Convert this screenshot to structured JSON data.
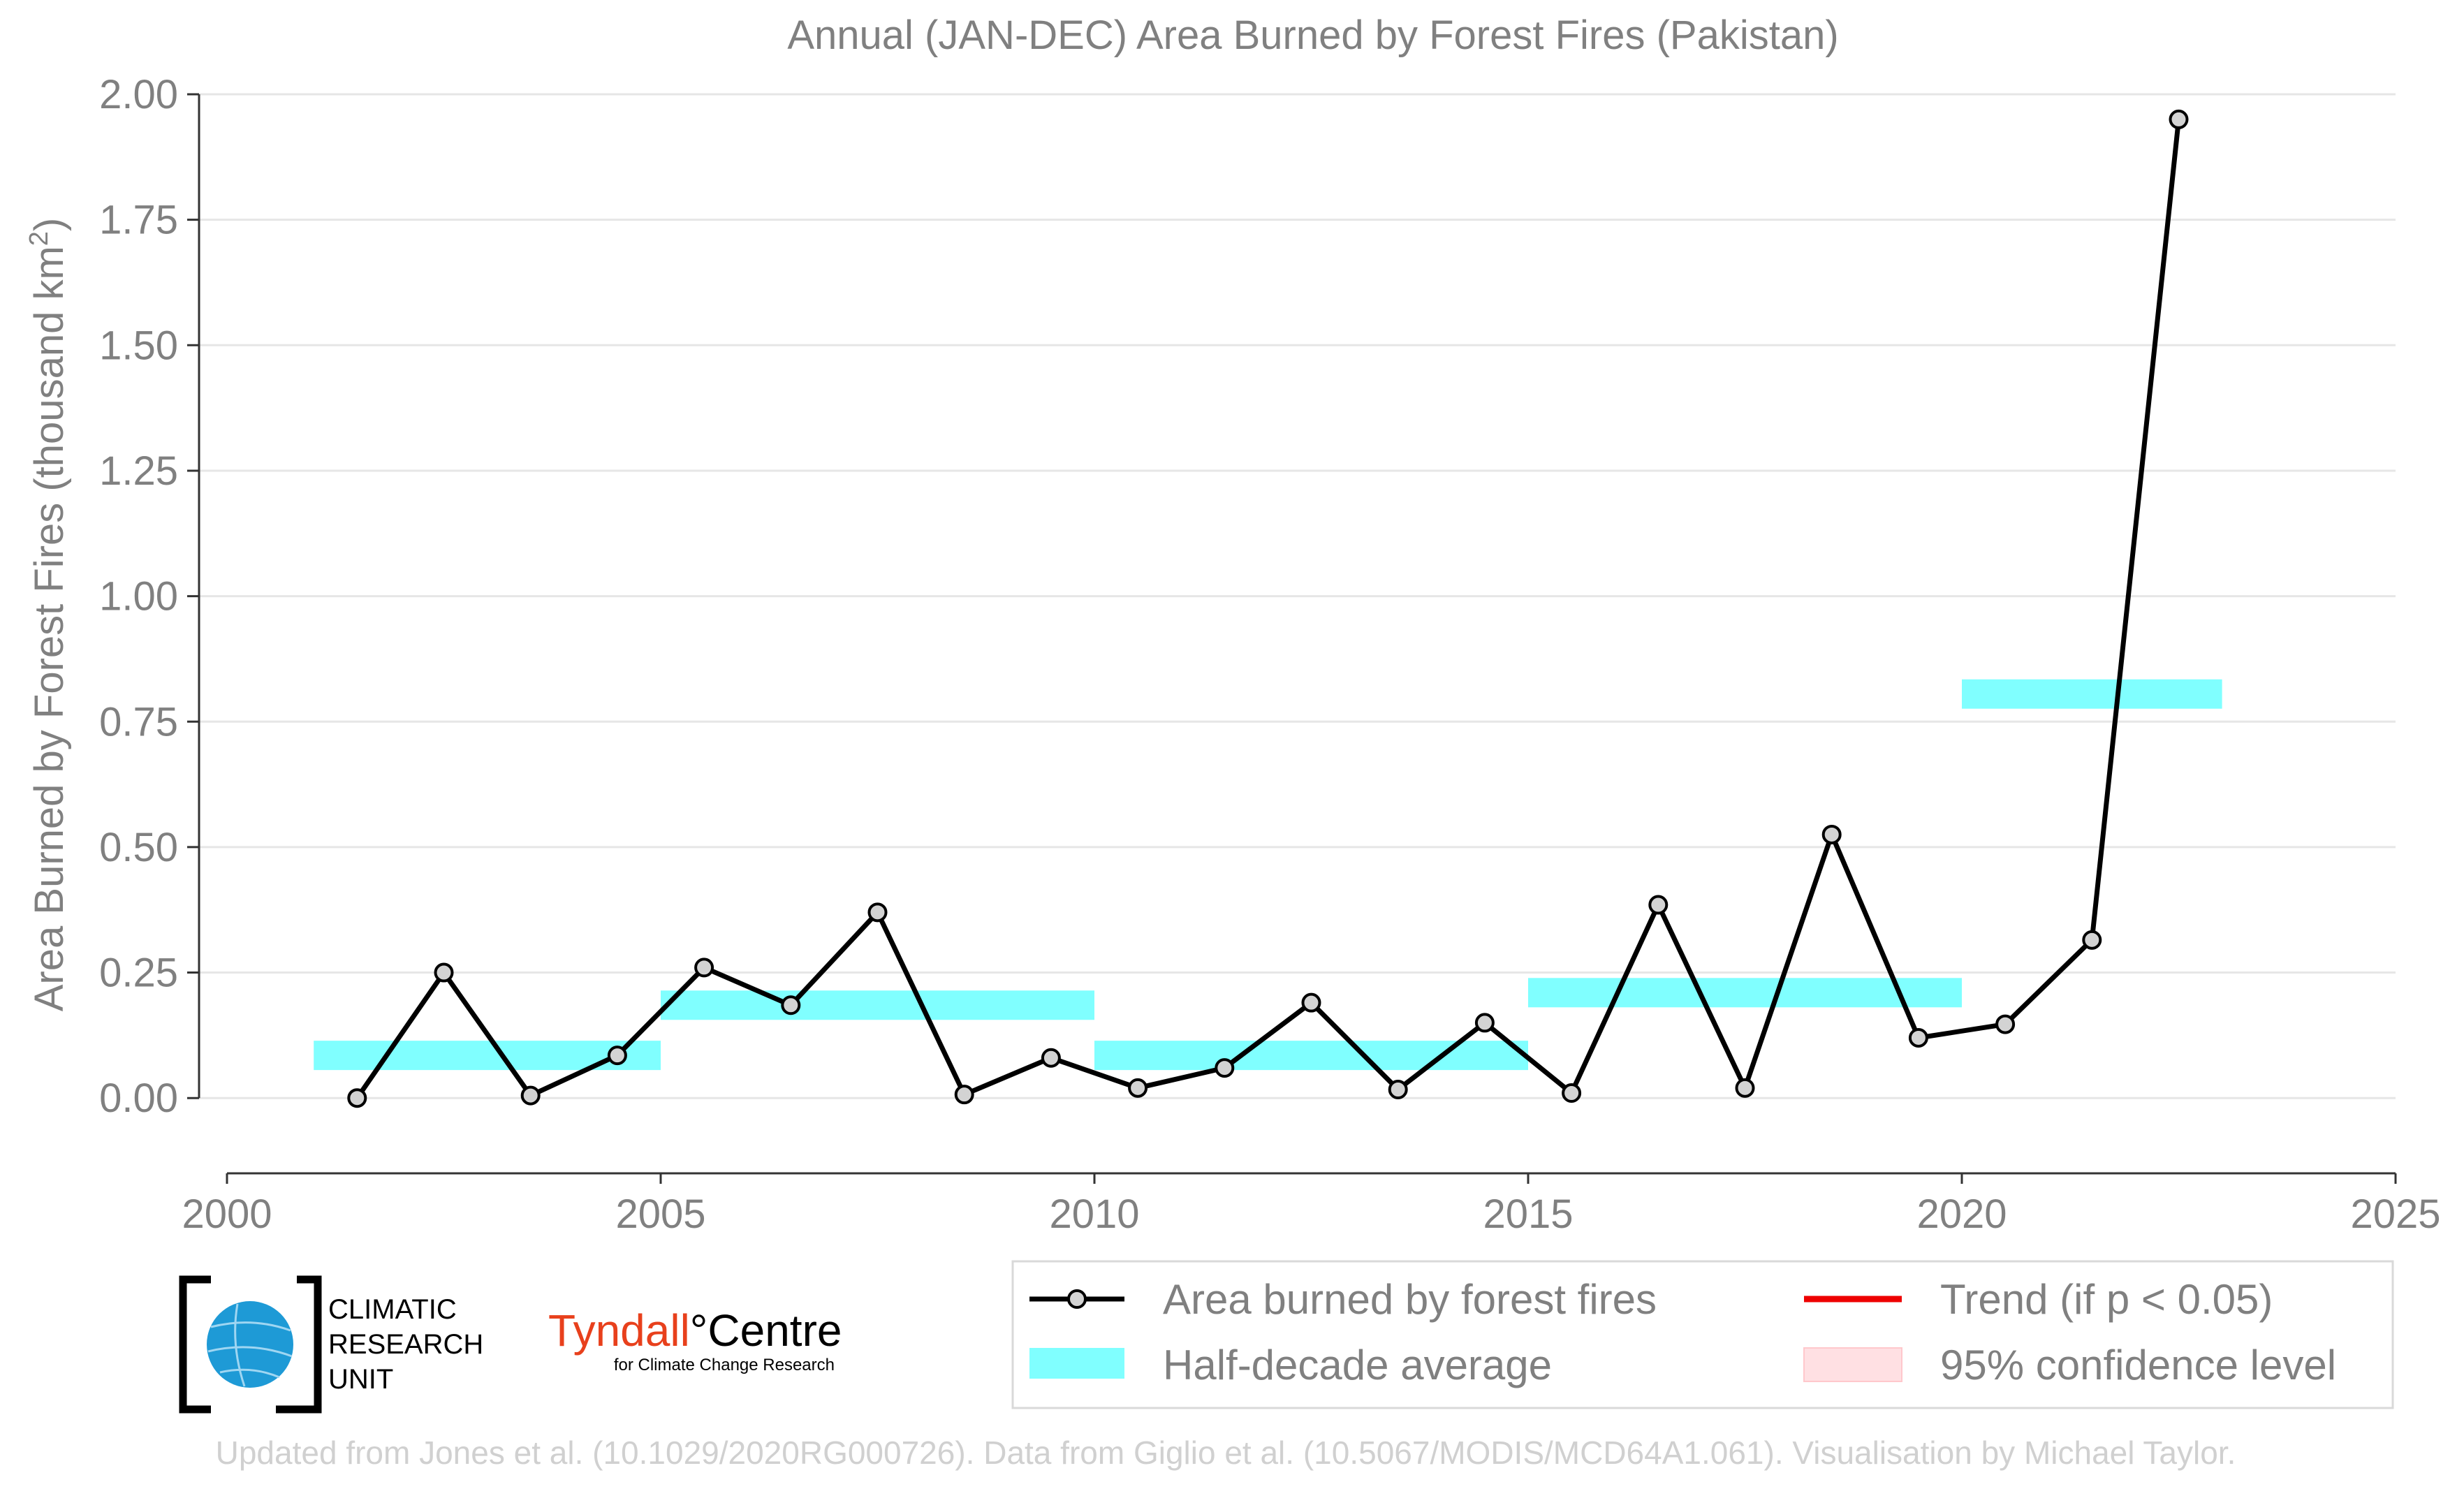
{
  "chart_data": {
    "type": "line",
    "title": "Annual (JAN-DEC) Area Burned by Forest Fires (Pakistan)",
    "ylabel": "Area Burned by Forest Fires (thousand km",
    "ylabel_sup": "2",
    "ylabel_close": ")",
    "xlabel": "",
    "xlim": [
      2000,
      2025
    ],
    "ylim": [
      -0.15,
      2.0
    ],
    "yticks": [
      0.0,
      0.25,
      0.5,
      0.75,
      1.0,
      1.25,
      1.5,
      1.75,
      2.0
    ],
    "ytick_labels": [
      "0.00",
      "0.25",
      "0.50",
      "0.75",
      "1.00",
      "1.25",
      "1.50",
      "1.75",
      "2.00"
    ],
    "xticks": [
      2000,
      2005,
      2010,
      2015,
      2020,
      2025
    ],
    "xtick_labels": [
      "2000",
      "2005",
      "2010",
      "2015",
      "2020",
      "2025"
    ],
    "grid": "horizontal",
    "series": [
      {
        "name": "Area burned by forest fires",
        "color": "#000000",
        "marker_fill": "#d3d3d3",
        "x": [
          2001.5,
          2002.5,
          2003.5,
          2004.5,
          2005.5,
          2006.5,
          2007.5,
          2008.5,
          2009.5,
          2010.5,
          2011.5,
          2012.5,
          2013.5,
          2014.5,
          2015.5,
          2016.5,
          2017.5,
          2018.5,
          2019.5,
          2020.5,
          2021.5,
          2022.5
        ],
        "values": [
          0.0,
          0.25,
          0.005,
          0.085,
          0.26,
          0.185,
          0.37,
          0.007,
          0.08,
          0.02,
          0.06,
          0.19,
          0.017,
          0.15,
          0.01,
          0.385,
          0.02,
          0.525,
          0.12,
          0.147,
          0.315,
          1.95
        ]
      }
    ],
    "half_decade_average": {
      "name": "Half-decade average",
      "color": "#80ffff",
      "bars": [
        {
          "x_start": 2001,
          "x_end": 2005,
          "value": 0.085
        },
        {
          "x_start": 2005,
          "x_end": 2010,
          "value": 0.185
        },
        {
          "x_start": 2010,
          "x_end": 2015,
          "value": 0.085
        },
        {
          "x_start": 2015,
          "x_end": 2020,
          "value": 0.21
        },
        {
          "x_start": 2020,
          "x_end": 2023,
          "value": 0.805
        }
      ]
    },
    "legend": {
      "placement": "bottom-right",
      "entries": [
        {
          "label": "Area burned by forest fires",
          "kind": "line-marker",
          "color": "#000000"
        },
        {
          "label": "Trend (if p < 0.05)",
          "kind": "line",
          "color": "#ee0000"
        },
        {
          "label": "Half-decade average",
          "kind": "band",
          "color": "#80ffff"
        },
        {
          "label": "95% confidence level",
          "kind": "band",
          "color": "#ffe0e3"
        }
      ]
    }
  },
  "logos": {
    "cru_lines": [
      "CLIMATIC",
      "RESEARCH",
      "UNIT"
    ],
    "tyndall_main": "Tyndall",
    "tyndall_degree": "°",
    "tyndall_centre": "Centre",
    "tyndall_sub": "for Climate Change Research",
    "tyndall_color": "#e8401c",
    "cru_globe_color": "#1e9ad6"
  },
  "footer": "Updated from Jones et al. (10.1029/2020RG000726). Data from Giglio et al. (10.5067/MODIS/MCD64A1.061). Visualisation by Michael Taylor."
}
